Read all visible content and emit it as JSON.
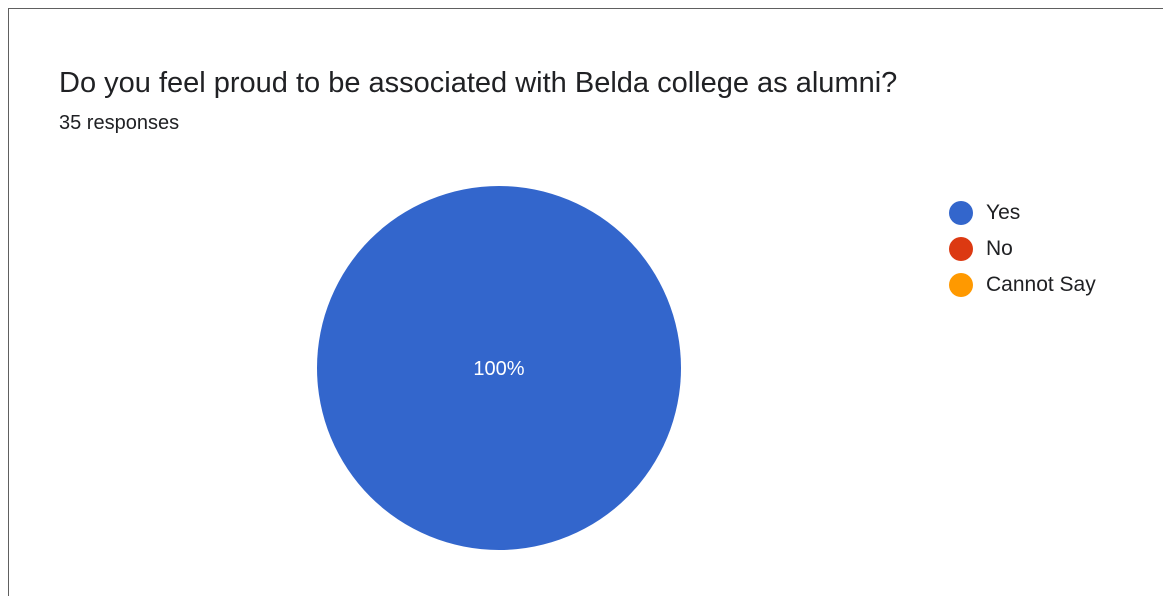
{
  "question": {
    "title": "Do you feel proud to be associated with Belda college as alumni?",
    "responses": "35 responses"
  },
  "chart_data": {
    "type": "pie",
    "title": "Do you feel proud to be associated with Belda college as alumni?",
    "total_responses": 35,
    "categories": [
      "Yes",
      "No",
      "Cannot Say"
    ],
    "values": [
      100,
      0,
      0
    ],
    "colors": [
      "#3366cc",
      "#dc3912",
      "#ff9900"
    ],
    "slice_labels": [
      "100%",
      "",
      ""
    ],
    "slice_label_color": "#ffffff",
    "legend_position": "right"
  }
}
